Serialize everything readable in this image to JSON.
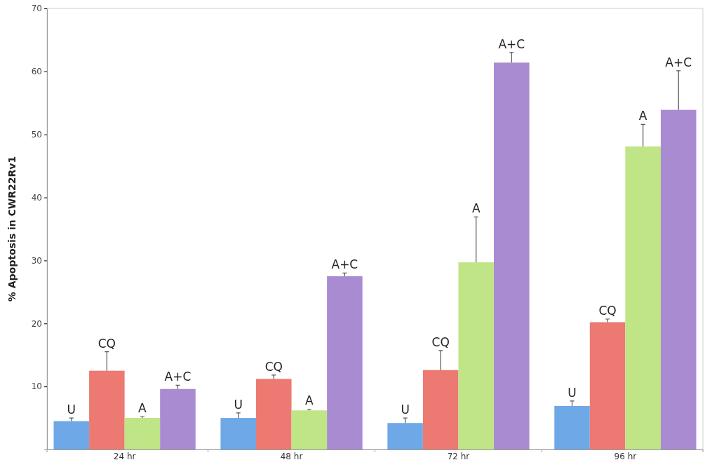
{
  "chart_data": {
    "type": "bar",
    "ylabel": "% Apoptosis in CWR22Rv1",
    "categories": [
      "24 hr",
      "48 hr",
      "72 hr",
      "96 hr"
    ],
    "ylim": [
      0,
      70
    ],
    "yticks": [
      10,
      20,
      30,
      40,
      50,
      60,
      70
    ],
    "grid": false,
    "legend": false,
    "series": [
      {
        "name": "U",
        "color": "#6fa8e6",
        "values": [
          4.5,
          5.0,
          4.2,
          6.9
        ],
        "errors": [
          [
            4.5,
            5.0
          ],
          [
            5.0,
            5.8
          ],
          [
            4.2,
            5.0
          ],
          [
            6.9,
            7.7
          ]
        ]
      },
      {
        "name": "CQ",
        "color": "#ec7a72",
        "values": [
          12.5,
          11.2,
          12.6,
          20.2
        ],
        "errors": [
          [
            12.5,
            15.5
          ],
          [
            11.2,
            11.8
          ],
          [
            12.6,
            15.7
          ],
          [
            20.2,
            20.7
          ]
        ]
      },
      {
        "name": "A",
        "color": "#bfe586",
        "values": [
          5.0,
          6.2,
          29.7,
          48.1
        ],
        "errors": [
          [
            5.0,
            5.2
          ],
          [
            6.2,
            6.4
          ],
          [
            29.7,
            36.9
          ],
          [
            48.1,
            51.6
          ]
        ]
      },
      {
        "name": "A+C",
        "color": "#a98bd2",
        "values": [
          9.6,
          27.5,
          61.4,
          53.9
        ],
        "errors": [
          [
            9.6,
            10.2
          ],
          [
            27.5,
            28.0
          ],
          [
            61.4,
            63.0
          ],
          [
            53.9,
            60.1
          ]
        ]
      }
    ]
  }
}
